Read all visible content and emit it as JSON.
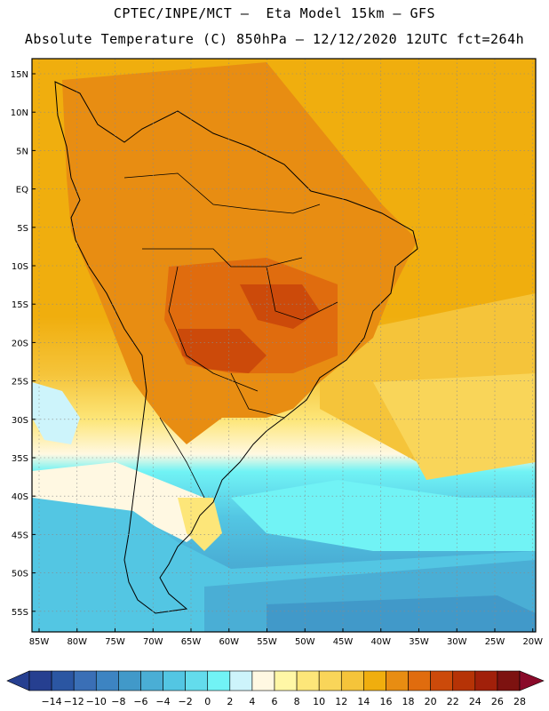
{
  "header": {
    "line1": "CPTEC/INPE/MCT –  Eta Model 15km – GFS",
    "line2": "Absolute Temperature (C) 850hPa – 12/12/2020 12UTC fct=264h"
  },
  "map": {
    "lat_labels": [
      "15N",
      "10N",
      "5N",
      "EQ",
      "5S",
      "10S",
      "15S",
      "20S",
      "25S",
      "30S",
      "35S",
      "40S",
      "45S",
      "50S",
      "55S"
    ],
    "lon_labels": [
      "85W",
      "80W",
      "75W",
      "70W",
      "65W",
      "60W",
      "55W",
      "50W",
      "45W",
      "40W",
      "35W",
      "30W",
      "25W",
      "20W"
    ],
    "grid": true
  },
  "colorbar": {
    "labels": [
      "-14",
      "-12",
      "-10",
      "-8",
      "-6",
      "-4",
      "-2",
      "0",
      "2",
      "4",
      "6",
      "8",
      "10",
      "12",
      "14",
      "16",
      "18",
      "20",
      "22",
      "24",
      "26",
      "28"
    ],
    "colors": [
      "#263f90",
      "#2b56a2",
      "#3a6fb6",
      "#3d84c2",
      "#4199c9",
      "#4aaed5",
      "#53c6e3",
      "#63dcec",
      "#71f3f5",
      "#cdf4fb",
      "#fff8e2",
      "#fff7a6",
      "#fde679",
      "#f9d559",
      "#f5c43a",
      "#f0ae0e",
      "#e88d12",
      "#e06c0e",
      "#cc4a0a",
      "#b63306",
      "#a1200a",
      "#7d1210",
      "#8a0a2a"
    ],
    "low_arrow_color": "#263f90",
    "high_arrow_color": "#8a0a2a"
  }
}
